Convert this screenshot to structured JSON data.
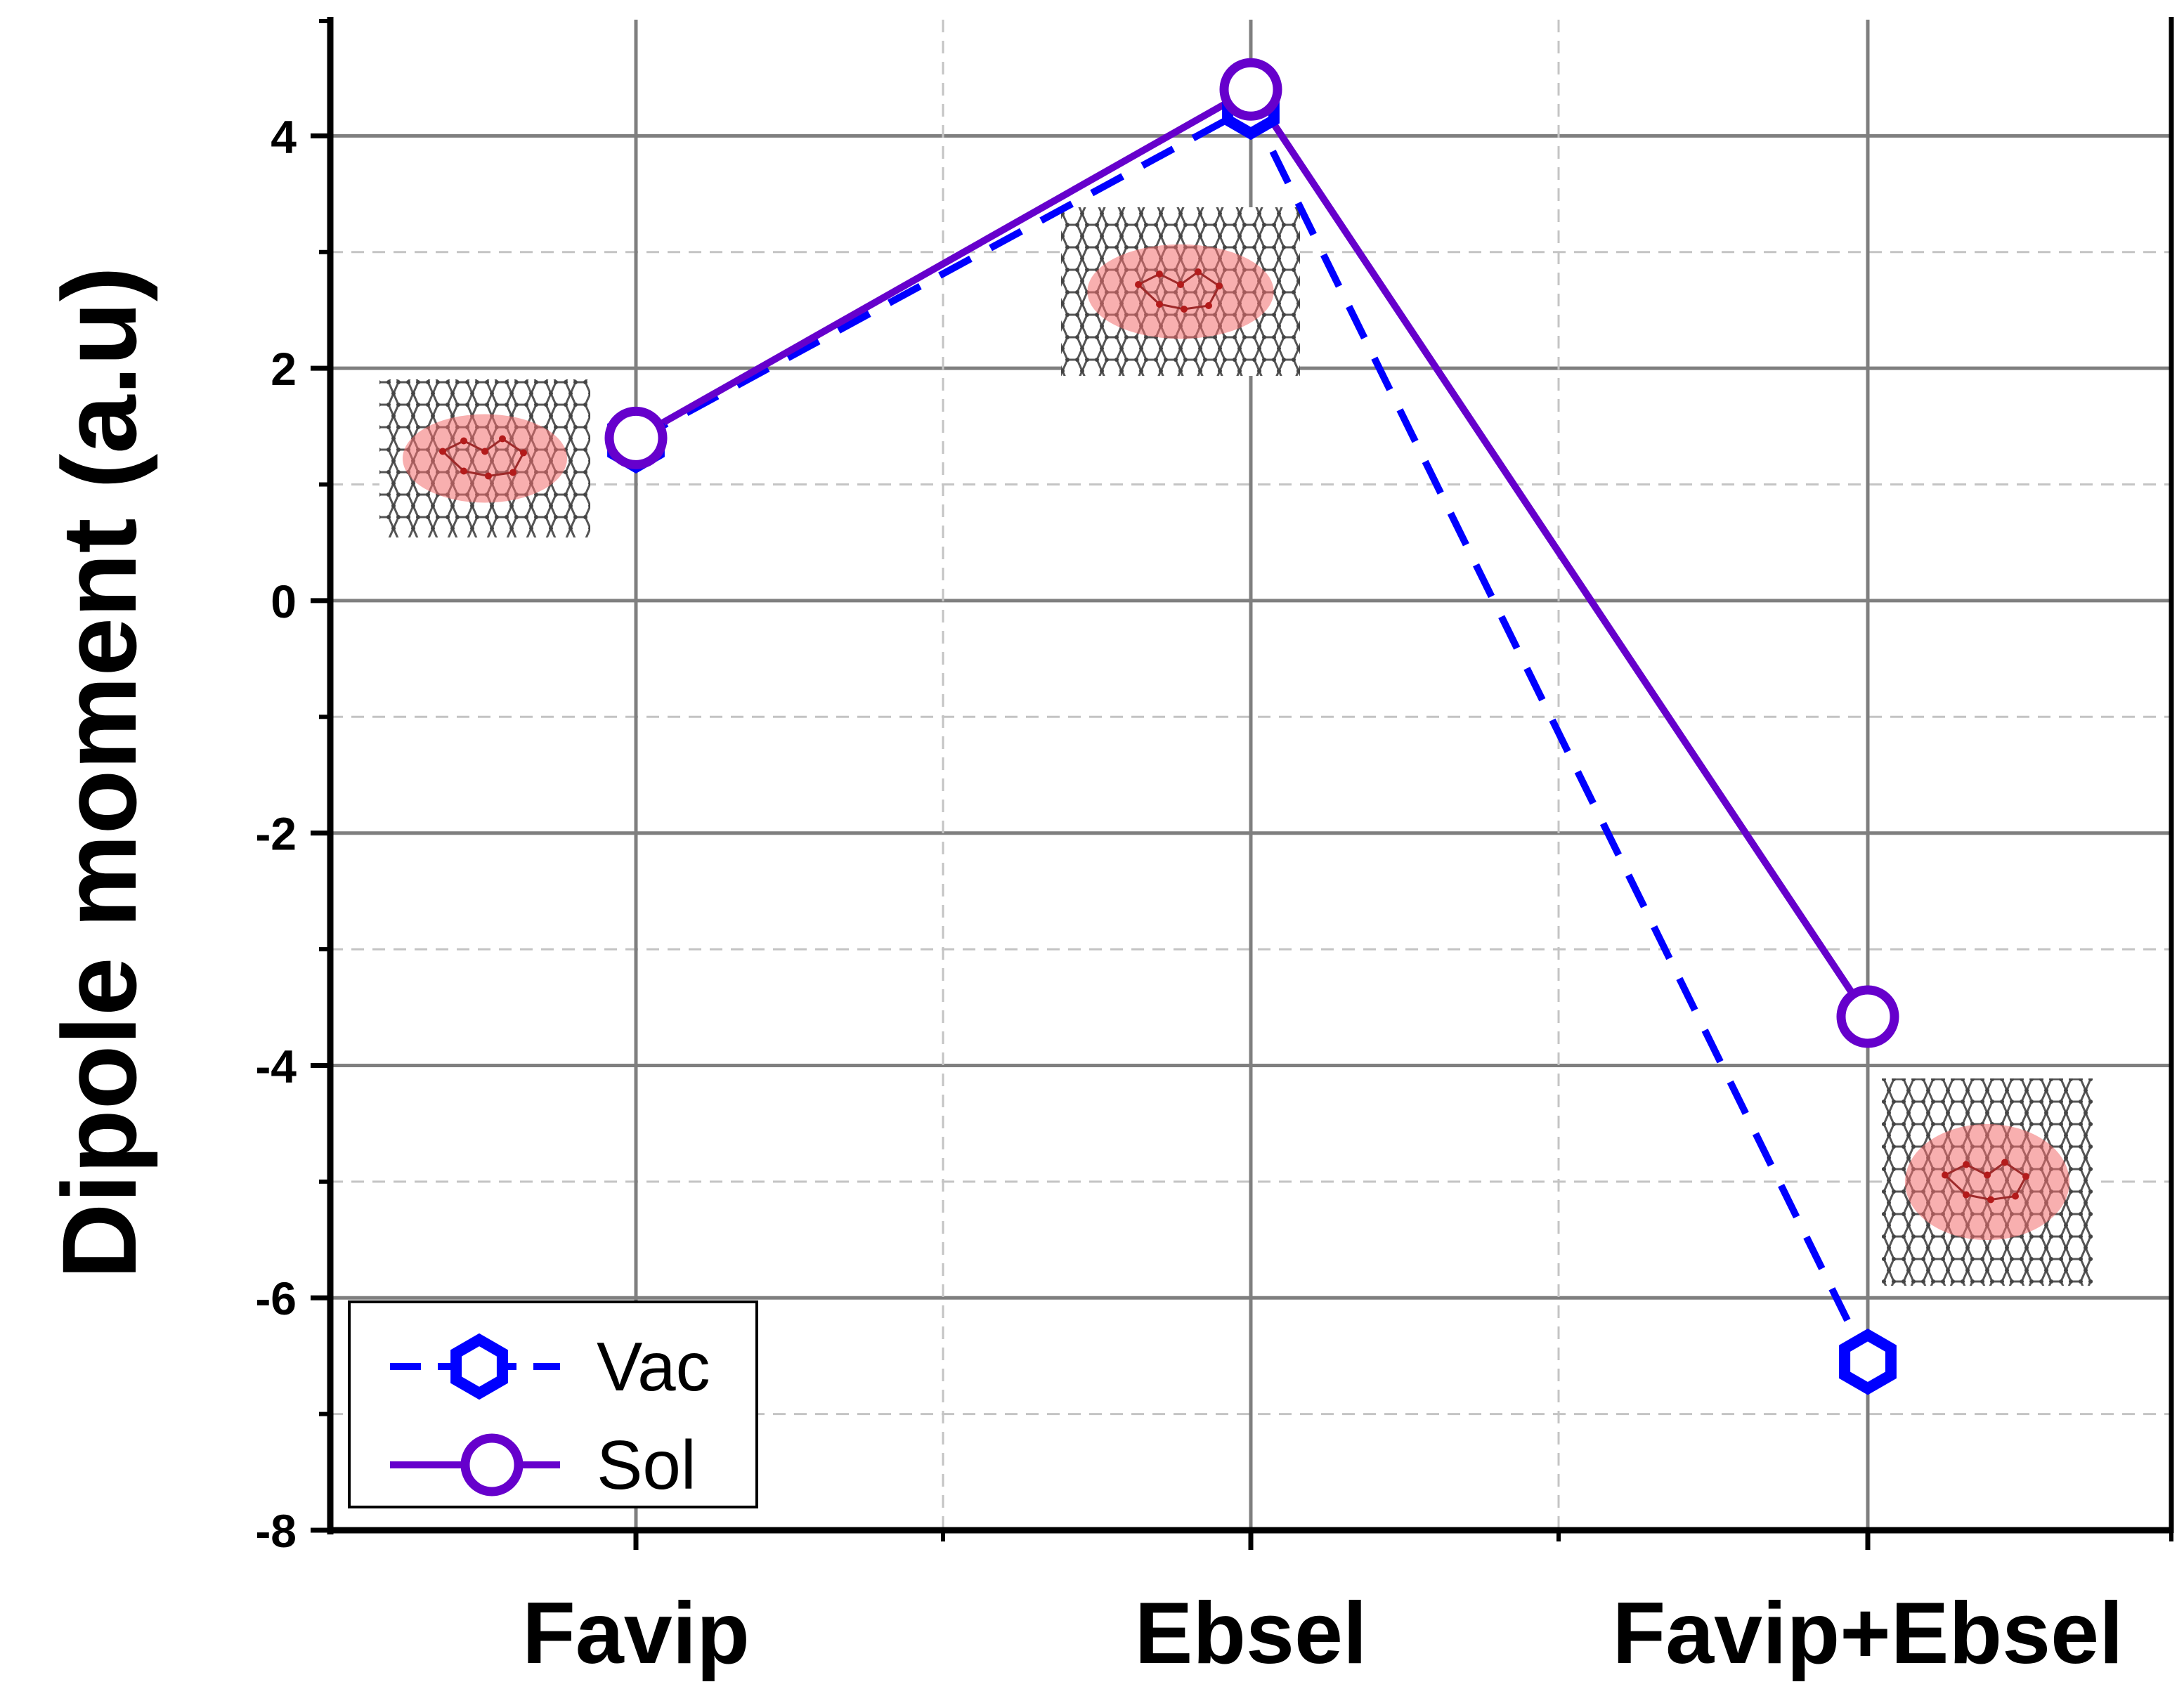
{
  "chart_data": {
    "type": "line",
    "categories": [
      "Favip",
      "Ebsel",
      "Favip+Ebsel"
    ],
    "ylabel": "Dipole moment (a.u)",
    "xlabel": "",
    "ylim": [
      -8,
      5
    ],
    "yticks": [
      -8,
      -6,
      -4,
      -2,
      0,
      2,
      4
    ],
    "ytick_labels": [
      "-8",
      "-6",
      "-4",
      "-2",
      "0",
      "2",
      "4"
    ],
    "grid": true,
    "legend_position": "bottom-left",
    "series": [
      {
        "name": "Vac",
        "values": [
          1.38,
          4.25,
          -6.55
        ],
        "color": "#0000ff",
        "line_style": "dashed",
        "marker": "hexagon"
      },
      {
        "name": "Sol",
        "values": [
          1.4,
          4.4,
          -3.58
        ],
        "color": "#6600cc",
        "line_style": "solid",
        "marker": "circle"
      }
    ],
    "insets": [
      {
        "category": "Favip",
        "y": 1.2,
        "icon": "graphene-molecule-icon"
      },
      {
        "category": "Ebsel",
        "y": 2.6,
        "icon": "graphene-molecule-icon"
      },
      {
        "category": "Favip+Ebsel",
        "y": -5.0,
        "icon": "graphene-molecule-icon"
      }
    ]
  }
}
